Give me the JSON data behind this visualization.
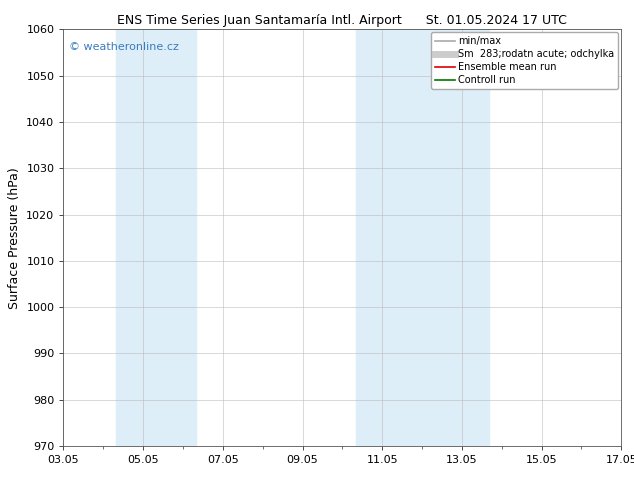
{
  "title_left": "ENS Time Series Juan Santamaría Intl. Airport",
  "title_right": "St. 01.05.2024 17 UTC",
  "ylabel": "Surface Pressure (hPa)",
  "ylim": [
    970,
    1060
  ],
  "yticks": [
    970,
    980,
    990,
    1000,
    1010,
    1020,
    1030,
    1040,
    1050,
    1060
  ],
  "xtick_labels": [
    "03.05",
    "05.05",
    "07.05",
    "09.05",
    "11.05",
    "13.05",
    "15.05",
    "17.05"
  ],
  "xtick_positions": [
    0,
    2,
    4,
    6,
    8,
    10,
    12,
    14
  ],
  "bg_color": "#ffffff",
  "plot_bg_color": "#ffffff",
  "shaded_regions": [
    {
      "xstart": 1.33,
      "xend": 3.33,
      "color": "#ddeef8"
    },
    {
      "xstart": 7.33,
      "xend": 10.67,
      "color": "#ddeef8"
    }
  ],
  "watermark_text": "© weatheronline.cz",
  "watermark_color": "#3a7bbf",
  "legend_entries": [
    {
      "label": "min/max",
      "color": "#aaaaaa",
      "linestyle": "-",
      "linewidth": 1.2
    },
    {
      "label": "Sm  283;rodatn acute; odchylka",
      "color": "#cccccc",
      "linestyle": "-",
      "linewidth": 5
    },
    {
      "label": "Ensemble mean run",
      "color": "#dd0000",
      "linestyle": "-",
      "linewidth": 1.2
    },
    {
      "label": "Controll run",
      "color": "#007700",
      "linestyle": "-",
      "linewidth": 1.2
    }
  ],
  "title_fontsize": 9,
  "axis_label_fontsize": 9,
  "tick_fontsize": 8,
  "watermark_fontsize": 8,
  "legend_fontsize": 7,
  "grid_color": "#bbbbbb",
  "grid_linestyle": "-",
  "grid_linewidth": 0.4,
  "spine_color": "#555555"
}
